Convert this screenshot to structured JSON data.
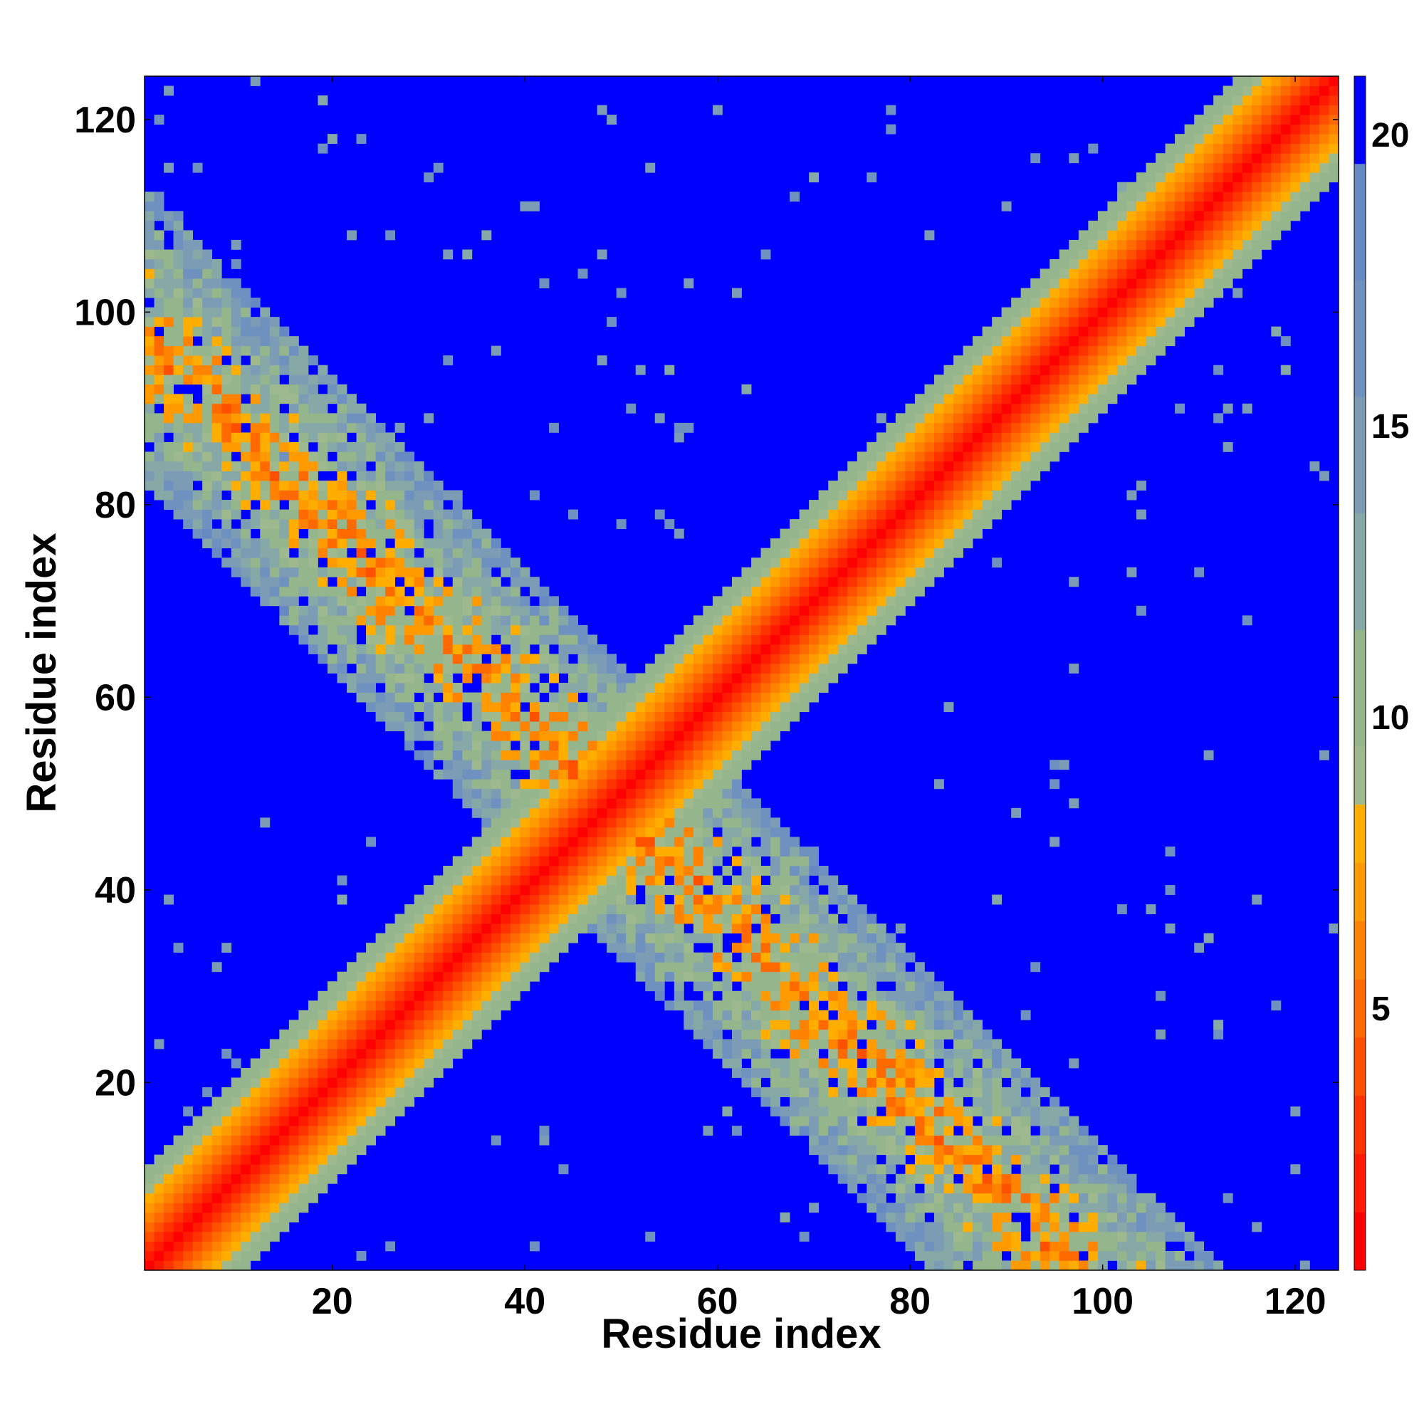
{
  "chart_data": {
    "type": "heatmap",
    "title": "",
    "xlabel": "Residue index",
    "ylabel": "Residue index",
    "n_residues": 124,
    "xlim": [
      0.5,
      124.5
    ],
    "ylim": [
      0.5,
      124.5
    ],
    "x_ticks": [
      20,
      40,
      60,
      80,
      100,
      120
    ],
    "y_ticks": [
      20,
      40,
      60,
      80,
      100,
      120
    ],
    "description_of_values": "symmetric residue-residue distance map; low values along the diagonal and along the anti-diagonal band from (1,97) to (97,1)",
    "colorbar": {
      "range": [
        0.5,
        21
      ],
      "ticks": [
        5,
        10,
        15,
        20
      ],
      "levels": [
        {
          "max": 1.5,
          "color": "#ff0000"
        },
        {
          "max": 2.5,
          "color": "#ff1a00"
        },
        {
          "max": 3.5,
          "color": "#ff3300"
        },
        {
          "max": 4.5,
          "color": "#ff5000"
        },
        {
          "max": 5.5,
          "color": "#ff6a00"
        },
        {
          "max": 6.5,
          "color": "#ff8300"
        },
        {
          "max": 7.5,
          "color": "#ff9a00"
        },
        {
          "max": 8.5,
          "color": "#ffae00"
        },
        {
          "max": 9.5,
          "color": "#9fb98f"
        },
        {
          "max": 11.5,
          "color": "#95b58c"
        },
        {
          "max": 13.5,
          "color": "#86a8a6"
        },
        {
          "max": 15.5,
          "color": "#7c9cb6"
        },
        {
          "max": 17.5,
          "color": "#6e91c0"
        },
        {
          "max": 19.5,
          "color": "#6689c4"
        },
        {
          "max": 21.0,
          "color": "#0000ff"
        }
      ]
    },
    "background_color": "#0000ff"
  }
}
